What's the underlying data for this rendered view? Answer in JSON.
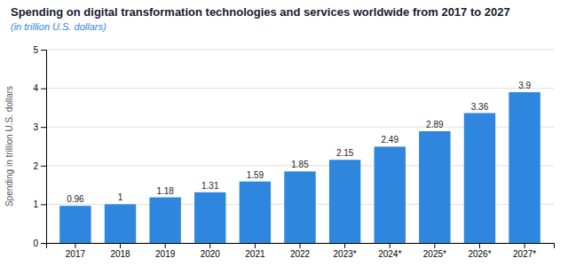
{
  "chart_data": {
    "type": "bar",
    "title": "Spending on digital transformation technologies and services worldwide from 2017 to 2027",
    "subtitle": "(in trillion U.S. dollars)",
    "categories": [
      "2017",
      "2018",
      "2019",
      "2020",
      "2021",
      "2022",
      "2023*",
      "2024*",
      "2025*",
      "2026*",
      "2027*"
    ],
    "values": [
      0.96,
      1,
      1.18,
      1.31,
      1.59,
      1.85,
      2.15,
      2.49,
      2.89,
      3.36,
      3.9
    ],
    "color": "#2e86de",
    "ylabel": "Spending in trillion U.S. dollars",
    "ylim": [
      0,
      5
    ],
    "yticks": [
      0,
      1,
      2,
      3,
      4,
      5
    ],
    "grid": true,
    "data_labels": true
  }
}
